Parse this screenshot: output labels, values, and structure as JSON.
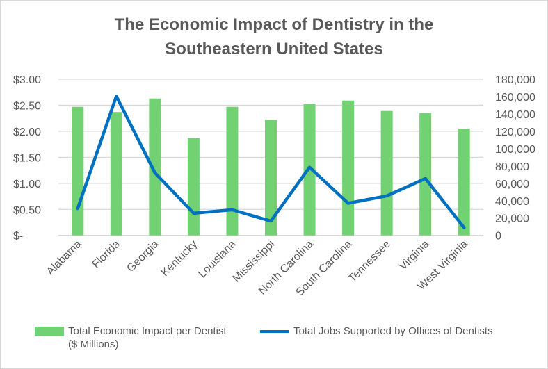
{
  "chart_data": {
    "type": "bar+line",
    "title_line1": "The Economic Impact of Dentistry in the",
    "title_line2": "Southeastern United States",
    "categories": [
      "Alabama",
      "Florida",
      "Georgia",
      "Kentucky",
      "Louisiana",
      "Mississippi",
      "North Carolina",
      "South Carolina",
      "Tennessee",
      "Virginia",
      "West Virginia"
    ],
    "series": [
      {
        "name": "Total Economic Impact per Dentist ($ Millions)",
        "name_line1": "Total Economic Impact per Dentist",
        "name_line2": "($ Millions)",
        "type": "bar",
        "axis": "left",
        "color": "#72D173",
        "values": [
          2.47,
          2.37,
          2.63,
          1.87,
          2.47,
          2.22,
          2.52,
          2.59,
          2.39,
          2.35,
          2.05
        ]
      },
      {
        "name": "Total Jobs Supported by Offices of Dentists",
        "type": "line",
        "axis": "right",
        "color": "#0070C0",
        "values": [
          31000,
          160500,
          72000,
          25500,
          29500,
          16500,
          78500,
          37000,
          45500,
          65500,
          9000
        ]
      }
    ],
    "left_axis": {
      "ylim": [
        0,
        3
      ],
      "ticks": [
        "$-",
        "$0.50",
        "$1.00",
        "$1.50",
        "$2.00",
        "$2.50",
        "$3.00"
      ]
    },
    "right_axis": {
      "ylim": [
        0,
        180000
      ],
      "ticks": [
        "0",
        "20,000",
        "40,000",
        "60,000",
        "80,000",
        "100,000",
        "120,000",
        "140,000",
        "160,000",
        "180,000"
      ]
    },
    "grid": true,
    "legend_position": "bottom"
  }
}
